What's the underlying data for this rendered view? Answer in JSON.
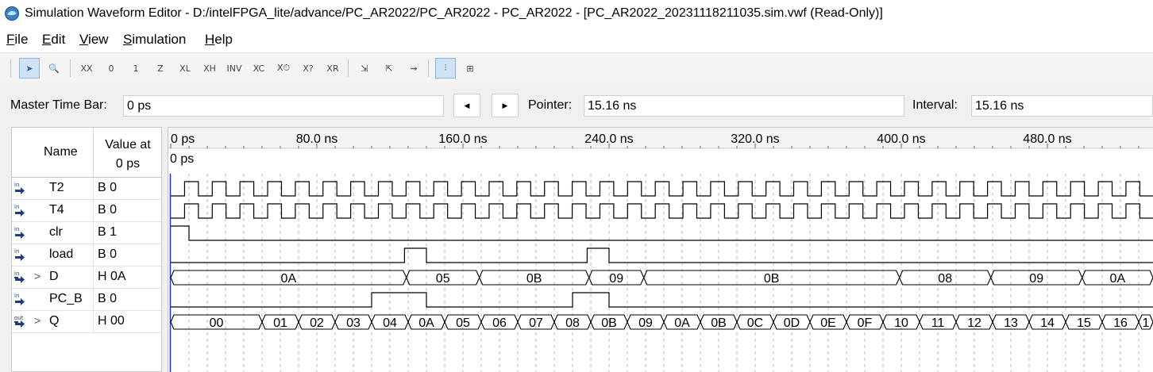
{
  "window": {
    "title": "Simulation Waveform Editor - D:/intelFPGA_lite/advance/PC_AR2022/PC_AR2022 - PC_AR2022 - [PC_AR2022_20231118211035.sim.vwf (Read-Only)]"
  },
  "menu": [
    "File",
    "Edit",
    "View",
    "Simulation",
    "Help"
  ],
  "toolbar": {
    "tools": [
      {
        "name": "selection-tool-icon",
        "glyph": "➤",
        "active": true
      },
      {
        "name": "zoom-tool-icon",
        "glyph": "🔍",
        "active": false
      },
      {
        "name": "uninitialized-icon",
        "glyph": "XX",
        "active": false
      },
      {
        "name": "force-low-icon",
        "glyph": "0",
        "active": false
      },
      {
        "name": "force-high-icon",
        "glyph": "1",
        "active": false
      },
      {
        "name": "high-impedance-icon",
        "glyph": "Z",
        "active": false
      },
      {
        "name": "weak-low-icon",
        "glyph": "XL",
        "active": false
      },
      {
        "name": "weak-high-icon",
        "glyph": "XH",
        "active": false
      },
      {
        "name": "invert-icon",
        "glyph": "INV",
        "active": false
      },
      {
        "name": "count-value-icon",
        "glyph": "XC",
        "active": false
      },
      {
        "name": "clock-icon",
        "glyph": "X⏱",
        "active": false
      },
      {
        "name": "arbitrary-value-icon",
        "glyph": "X?",
        "active": false
      },
      {
        "name": "random-value-icon",
        "glyph": "XR",
        "active": false
      },
      {
        "name": "snap-to-grid-icon",
        "glyph": "⇲",
        "active": false
      },
      {
        "name": "zoom-fit-icon",
        "glyph": "⇱",
        "active": false
      },
      {
        "name": "edit-waveform-icon",
        "glyph": "⇝",
        "active": false
      },
      {
        "name": "grid-snap-active-icon",
        "glyph": "⫶",
        "active": true
      },
      {
        "name": "group-icon",
        "glyph": "⊞",
        "active": false
      }
    ]
  },
  "timebar": {
    "master_label": "Master Time Bar:",
    "master_value": "0 ps",
    "pointer_label": "Pointer:",
    "pointer_value": "15.16 ns",
    "interval_label": "Interval:",
    "interval_value": "15.16 ns"
  },
  "signals_header": {
    "name": "Name",
    "value_line1": "Value at",
    "value_line2": "0 ps"
  },
  "signals": [
    {
      "type": "in",
      "name": "T2",
      "value": "B 0",
      "expandable": false
    },
    {
      "type": "in",
      "name": "T4",
      "value": "B 0",
      "expandable": false
    },
    {
      "type": "in",
      "name": "clr",
      "value": "B 1",
      "expandable": false
    },
    {
      "type": "in",
      "name": "load",
      "value": "B 0",
      "expandable": false
    },
    {
      "type": "in",
      "name": "D",
      "value": "H 0A",
      "expandable": true
    },
    {
      "type": "in",
      "name": "PC_B",
      "value": "B 0",
      "expandable": false
    },
    {
      "type": "out",
      "name": "Q",
      "value": "H 00",
      "expandable": true
    }
  ],
  "timeline": {
    "ticks": [
      "0 ps",
      "80.0 ns",
      "160.0 ns",
      "240.0 ns",
      "320.0 ns",
      "400.0 ns",
      "480.0 ns"
    ],
    "tick_values_ns": [
      0,
      80,
      160,
      240,
      320,
      400,
      480
    ],
    "cursor_label": "0 ps",
    "visible_range_ns": [
      0,
      538
    ]
  },
  "waves": {
    "clock_period_ns": 15.16,
    "clr_high_until_ns": 10,
    "load_pulses_ns": [
      [
        128,
        140
      ],
      [
        228,
        240
      ]
    ],
    "pc_b_pulses_ns": [
      [
        110,
        140
      ],
      [
        220,
        240
      ]
    ],
    "D": [
      {
        "from": 0,
        "to": 129,
        "label": "0A"
      },
      {
        "from": 129,
        "to": 169,
        "label": "05"
      },
      {
        "from": 169,
        "to": 229,
        "label": "0B"
      },
      {
        "from": 229,
        "to": 259,
        "label": "09"
      },
      {
        "from": 259,
        "to": 399,
        "label": "0B"
      },
      {
        "from": 399,
        "to": 449,
        "label": "08"
      },
      {
        "from": 449,
        "to": 499,
        "label": "09"
      },
      {
        "from": 499,
        "to": 538,
        "label": "0A"
      }
    ],
    "Q": [
      {
        "from": 0,
        "to": 50,
        "label": "00"
      },
      {
        "from": 50,
        "to": 70,
        "label": "01"
      },
      {
        "from": 70,
        "to": 90,
        "label": "02"
      },
      {
        "from": 90,
        "to": 110,
        "label": "03"
      },
      {
        "from": 110,
        "to": 130,
        "label": "04"
      },
      {
        "from": 130,
        "to": 150,
        "label": "0A"
      },
      {
        "from": 150,
        "to": 170,
        "label": "05"
      },
      {
        "from": 170,
        "to": 190,
        "label": "06"
      },
      {
        "from": 190,
        "to": 210,
        "label": "07"
      },
      {
        "from": 210,
        "to": 230,
        "label": "08"
      },
      {
        "from": 230,
        "to": 250,
        "label": "0B"
      },
      {
        "from": 250,
        "to": 270,
        "label": "09"
      },
      {
        "from": 270,
        "to": 290,
        "label": "0A"
      },
      {
        "from": 290,
        "to": 310,
        "label": "0B"
      },
      {
        "from": 310,
        "to": 330,
        "label": "0C"
      },
      {
        "from": 330,
        "to": 350,
        "label": "0D"
      },
      {
        "from": 350,
        "to": 370,
        "label": "0E"
      },
      {
        "from": 370,
        "to": 390,
        "label": "0F"
      },
      {
        "from": 390,
        "to": 410,
        "label": "10"
      },
      {
        "from": 410,
        "to": 430,
        "label": "11"
      },
      {
        "from": 430,
        "to": 450,
        "label": "12"
      },
      {
        "from": 450,
        "to": 470,
        "label": "13"
      },
      {
        "from": 470,
        "to": 490,
        "label": "14"
      },
      {
        "from": 490,
        "to": 510,
        "label": "15"
      },
      {
        "from": 510,
        "to": 530,
        "label": "16"
      },
      {
        "from": 530,
        "to": 538,
        "label": "1"
      }
    ]
  },
  "colors": {
    "cursor": "#2030c0",
    "grid": "#b8b8b8",
    "wave": "#000000"
  }
}
